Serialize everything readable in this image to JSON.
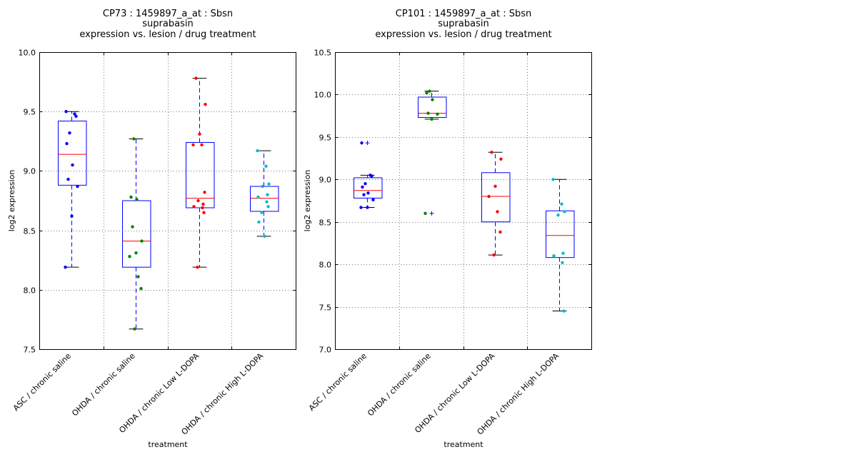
{
  "chart_data": [
    {
      "type": "box",
      "title_lines": [
        "CP73 : 1459897_a_at : Sbsn",
        "suprabasin",
        "expression vs. lesion / drug treatment"
      ],
      "xlabel": "treatment",
      "ylabel": "log2 expression",
      "ylim": [
        7.5,
        10.0
      ],
      "yticks": [
        "7.5",
        "8.0",
        "8.5",
        "9.0",
        "9.5",
        "10.0"
      ],
      "grid": true,
      "categories": [
        "ASC / chronic saline",
        "OHDA / chronic saline",
        "OHDA / chronic Low L-DOPA",
        "OHDA / chronic High L-DOPA"
      ],
      "boxes": [
        {
          "q1": 8.88,
          "median": 9.14,
          "q3": 9.42,
          "whisker_low": 8.19,
          "whisker_high": 9.5,
          "outliers": [],
          "points": [
            9.5,
            9.48,
            9.46,
            9.32,
            9.23,
            9.05,
            8.93,
            8.87,
            8.62,
            8.19
          ]
        },
        {
          "q1": 8.19,
          "median": 8.41,
          "q3": 8.75,
          "whisker_low": 7.67,
          "whisker_high": 9.27,
          "outliers": [],
          "points": [
            9.27,
            8.78,
            8.76,
            8.53,
            8.41,
            8.31,
            8.28,
            8.11,
            8.01,
            7.67
          ]
        },
        {
          "q1": 8.69,
          "median": 8.77,
          "q3": 9.24,
          "whisker_low": 8.19,
          "whisker_high": 9.78,
          "outliers": [],
          "points": [
            9.78,
            9.56,
            9.31,
            9.22,
            9.22,
            8.82,
            8.75,
            8.72,
            8.7,
            8.69,
            8.65,
            8.19
          ]
        },
        {
          "q1": 8.66,
          "median": 8.77,
          "q3": 8.87,
          "whisker_low": 8.45,
          "whisker_high": 9.17,
          "outliers": [],
          "points": [
            9.17,
            9.04,
            8.89,
            8.87,
            8.8,
            8.78,
            8.74,
            8.7,
            8.65,
            8.57,
            8.45
          ]
        }
      ],
      "point_colors": [
        "#0000ff",
        "#008000",
        "#ff0000",
        "#00bfbf"
      ]
    },
    {
      "type": "box",
      "title_lines": [
        "CP101 : 1459897_a_at : Sbsn",
        "suprabasin",
        "expression vs. lesion / drug treatment"
      ],
      "xlabel": "treatment",
      "ylabel": "log2 expression",
      "ylim": [
        7.0,
        10.5
      ],
      "yticks": [
        "7.0",
        "7.5",
        "8.0",
        "8.5",
        "9.0",
        "9.5",
        "10.0",
        "10.5"
      ],
      "grid": true,
      "categories": [
        "ASC / chronic saline",
        "OHDA / chronic saline",
        "OHDA / chronic Low L-DOPA",
        "OHDA / chronic High L-DOPA"
      ],
      "boxes": [
        {
          "q1": 8.78,
          "median": 8.87,
          "q3": 9.02,
          "whisker_low": 8.67,
          "whisker_high": 9.05,
          "outliers": [
            9.43
          ],
          "points": [
            9.43,
            9.05,
            9.04,
            8.95,
            8.91,
            8.84,
            8.82,
            8.76,
            8.67,
            8.67
          ]
        },
        {
          "q1": 9.73,
          "median": 9.78,
          "q3": 9.97,
          "whisker_low": 9.71,
          "whisker_high": 10.04,
          "outliers": [
            8.6
          ],
          "points": [
            10.04,
            10.02,
            9.94,
            9.78,
            9.77,
            9.71,
            8.6
          ]
        },
        {
          "q1": 8.5,
          "median": 8.8,
          "q3": 9.08,
          "whisker_low": 8.11,
          "whisker_high": 9.32,
          "outliers": [],
          "points": [
            9.32,
            9.24,
            8.92,
            8.8,
            8.62,
            8.38,
            8.11
          ]
        },
        {
          "q1": 8.08,
          "median": 8.34,
          "q3": 8.63,
          "whisker_low": 7.45,
          "whisker_high": 9.0,
          "outliers": [],
          "points": [
            9.0,
            8.71,
            8.62,
            8.58,
            8.13,
            8.1,
            8.02,
            7.45
          ]
        }
      ],
      "point_colors": [
        "#0000ff",
        "#008000",
        "#ff0000",
        "#00bfbf"
      ]
    }
  ]
}
